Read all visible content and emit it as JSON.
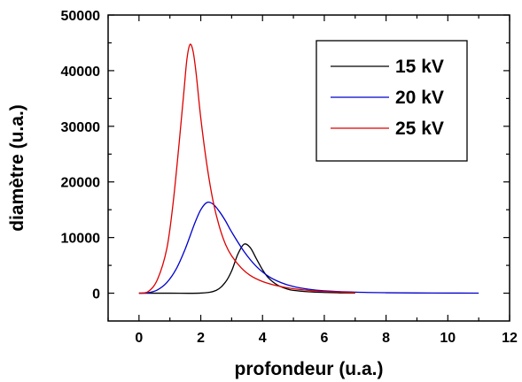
{
  "chart_data": {
    "type": "line",
    "xlabel": "profondeur (u.a.)",
    "ylabel": "diamètre (u.a.)",
    "xlim": [
      -1,
      12
    ],
    "ylim": [
      -5000,
      50000
    ],
    "x_ticks": [
      0,
      2,
      4,
      6,
      8,
      10,
      12
    ],
    "y_ticks": [
      0,
      10000,
      20000,
      30000,
      40000,
      50000
    ],
    "grid": false,
    "legend_position": "top-right",
    "series": [
      {
        "name": "15 kV",
        "color": "#000000",
        "points": [
          [
            0.0,
            0
          ],
          [
            1.0,
            0
          ],
          [
            2.0,
            20
          ],
          [
            2.5,
            500
          ],
          [
            2.8,
            2000
          ],
          [
            3.0,
            4000
          ],
          [
            3.2,
            7000
          ],
          [
            3.4,
            8800
          ],
          [
            3.6,
            8200
          ],
          [
            3.8,
            6200
          ],
          [
            4.0,
            4200
          ],
          [
            4.2,
            2700
          ],
          [
            4.5,
            1400
          ],
          [
            4.8,
            750
          ],
          [
            5.0,
            500
          ],
          [
            5.5,
            250
          ],
          [
            6.0,
            130
          ],
          [
            6.5,
            60
          ],
          [
            7.0,
            30
          ]
        ]
      },
      {
        "name": "20 kV",
        "color": "#0000cc",
        "points": [
          [
            0.0,
            0
          ],
          [
            0.3,
            80
          ],
          [
            0.6,
            600
          ],
          [
            0.9,
            1900
          ],
          [
            1.2,
            4300
          ],
          [
            1.5,
            8000
          ],
          [
            1.8,
            12500
          ],
          [
            2.0,
            15000
          ],
          [
            2.2,
            16300
          ],
          [
            2.4,
            16000
          ],
          [
            2.6,
            14700
          ],
          [
            2.8,
            13000
          ],
          [
            3.0,
            11000
          ],
          [
            3.4,
            7500
          ],
          [
            3.8,
            4800
          ],
          [
            4.2,
            3000
          ],
          [
            4.6,
            1900
          ],
          [
            5.0,
            1200
          ],
          [
            5.5,
            700
          ],
          [
            6.0,
            420
          ],
          [
            7.0,
            180
          ],
          [
            8.0,
            80
          ],
          [
            9.0,
            40
          ],
          [
            10.0,
            20
          ],
          [
            11.0,
            10
          ]
        ]
      },
      {
        "name": "25 kV",
        "color": "#dd0000",
        "points": [
          [
            0.0,
            0
          ],
          [
            0.3,
            300
          ],
          [
            0.6,
            2500
          ],
          [
            0.9,
            8000
          ],
          [
            1.1,
            16000
          ],
          [
            1.3,
            27000
          ],
          [
            1.45,
            36000
          ],
          [
            1.55,
            42000
          ],
          [
            1.65,
            44700
          ],
          [
            1.75,
            43500
          ],
          [
            1.85,
            39500
          ],
          [
            2.0,
            31500
          ],
          [
            2.2,
            23000
          ],
          [
            2.4,
            16500
          ],
          [
            2.6,
            12000
          ],
          [
            2.8,
            8800
          ],
          [
            3.0,
            6700
          ],
          [
            3.3,
            4600
          ],
          [
            3.6,
            3200
          ],
          [
            4.0,
            2100
          ],
          [
            4.5,
            1300
          ],
          [
            5.0,
            800
          ],
          [
            5.5,
            500
          ],
          [
            6.0,
            300
          ],
          [
            7.0,
            120
          ]
        ]
      }
    ]
  }
}
